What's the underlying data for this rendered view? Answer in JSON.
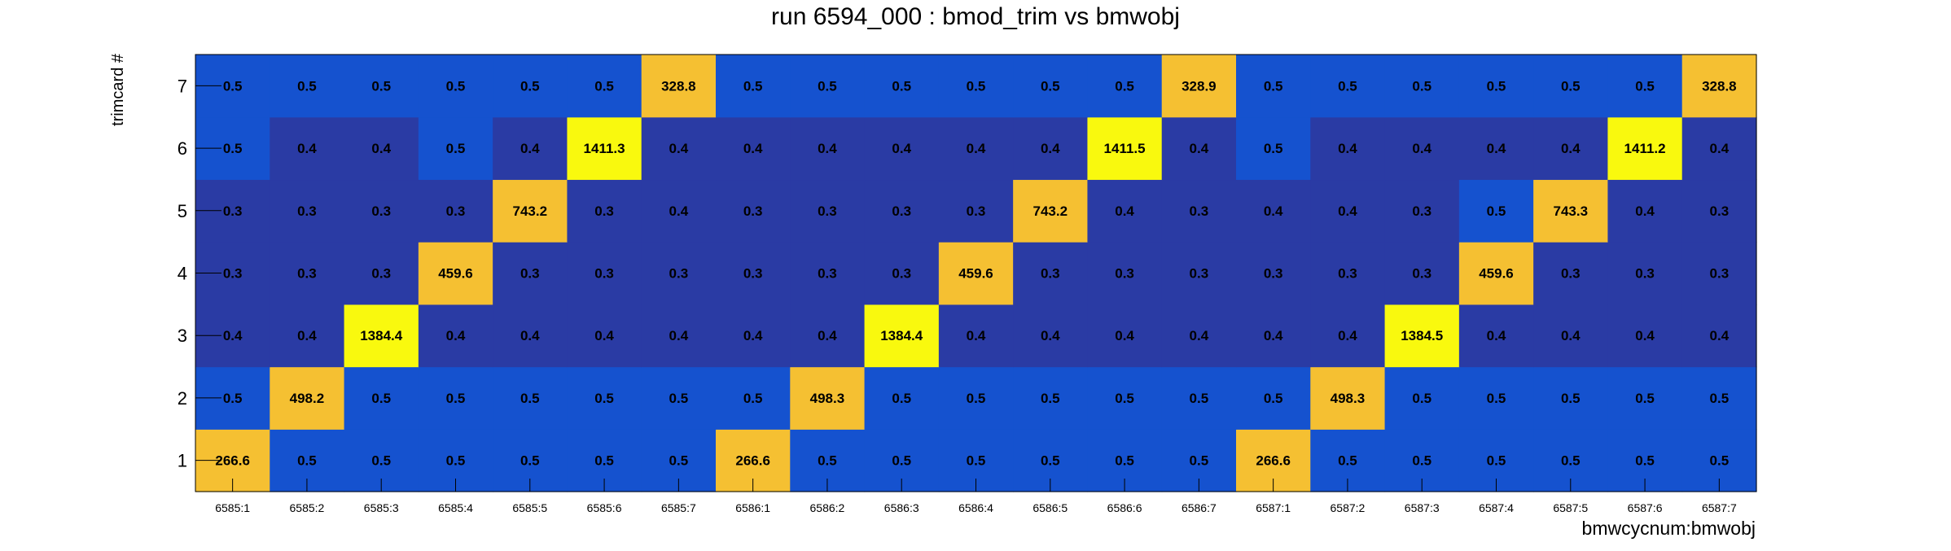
{
  "chart_data": {
    "type": "heatmap",
    "title": "run 6594_000 : bmod_trim vs bmwobj",
    "xlabel": "bmwcycnum:bmwobj",
    "ylabel": "trimcard #",
    "x_categories": [
      "6585:1",
      "6585:2",
      "6585:3",
      "6585:4",
      "6585:5",
      "6585:6",
      "6585:7",
      "6586:1",
      "6586:2",
      "6586:3",
      "6586:4",
      "6586:5",
      "6586:6",
      "6586:7",
      "6587:1",
      "6587:2",
      "6587:3",
      "6587:4",
      "6587:5",
      "6587:6",
      "6587:7"
    ],
    "y_categories": [
      "1",
      "2",
      "3",
      "4",
      "5",
      "6",
      "7"
    ],
    "values": [
      [
        266.6,
        0.5,
        0.5,
        0.5,
        0.5,
        0.5,
        0.5,
        266.6,
        0.5,
        0.5,
        0.5,
        0.5,
        0.5,
        0.5,
        266.6,
        0.5,
        0.5,
        0.5,
        0.5,
        0.5,
        0.5
      ],
      [
        0.5,
        498.2,
        0.5,
        0.5,
        0.5,
        0.5,
        0.5,
        0.5,
        498.3,
        0.5,
        0.5,
        0.5,
        0.5,
        0.5,
        0.5,
        498.3,
        0.5,
        0.5,
        0.5,
        0.5,
        0.5
      ],
      [
        0.4,
        0.4,
        1384.4,
        0.4,
        0.4,
        0.4,
        0.4,
        0.4,
        0.4,
        1384.4,
        0.4,
        0.4,
        0.4,
        0.4,
        0.4,
        0.4,
        1384.5,
        0.4,
        0.4,
        0.4,
        0.4
      ],
      [
        0.3,
        0.3,
        0.3,
        459.6,
        0.3,
        0.3,
        0.3,
        0.3,
        0.3,
        0.3,
        459.6,
        0.3,
        0.3,
        0.3,
        0.3,
        0.3,
        0.3,
        459.6,
        0.3,
        0.3,
        0.3
      ],
      [
        0.3,
        0.3,
        0.3,
        0.3,
        743.2,
        0.3,
        0.4,
        0.3,
        0.3,
        0.3,
        0.3,
        743.2,
        0.4,
        0.3,
        0.4,
        0.4,
        0.3,
        0.5,
        743.3,
        0.4,
        0.3
      ],
      [
        0.5,
        0.4,
        0.4,
        0.5,
        0.4,
        1411.3,
        0.4,
        0.4,
        0.4,
        0.4,
        0.4,
        0.4,
        1411.5,
        0.4,
        0.5,
        0.4,
        0.4,
        0.4,
        0.4,
        1411.2,
        0.4
      ],
      [
        0.5,
        0.5,
        0.5,
        0.5,
        0.5,
        0.5,
        328.8,
        0.5,
        0.5,
        0.5,
        0.5,
        0.5,
        0.5,
        328.9,
        0.5,
        0.5,
        0.5,
        0.5,
        0.5,
        0.5,
        328.8
      ]
    ],
    "colors": {
      "low_dark": "#2a3ba4",
      "low_mid": "#1552cf",
      "high_orange": "#f5c032",
      "high_yellow": "#f9f90e",
      "text": "#000000"
    },
    "grid": false,
    "legend": "none"
  }
}
